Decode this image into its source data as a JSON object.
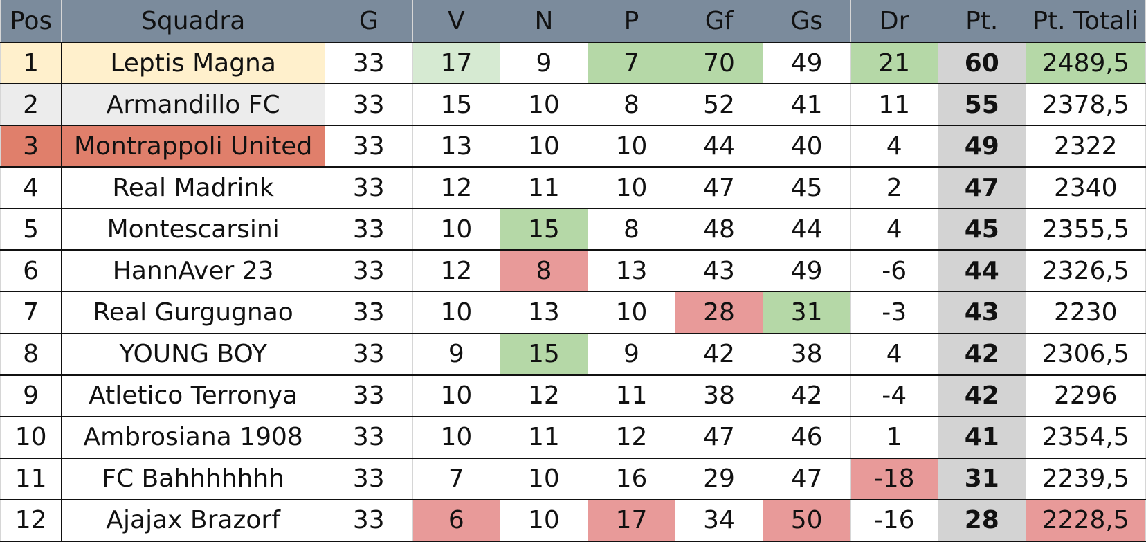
{
  "table": {
    "headers": [
      "Pos",
      "Squadra",
      "G",
      "V",
      "N",
      "P",
      "Gf",
      "Gs",
      "Dr",
      "Pt.",
      "Pt. Totali"
    ],
    "rows": [
      {
        "pos": "1",
        "team": "Leptis Magna",
        "g": "33",
        "v": "17",
        "n": "9",
        "p": "7",
        "gf": "70",
        "gs": "49",
        "dr": "21",
        "pt": "60",
        "tot": "2489,5"
      },
      {
        "pos": "2",
        "team": "Armandillo FC",
        "g": "33",
        "v": "15",
        "n": "10",
        "p": "8",
        "gf": "52",
        "gs": "41",
        "dr": "11",
        "pt": "55",
        "tot": "2378,5"
      },
      {
        "pos": "3",
        "team": "Montrappoli United",
        "g": "33",
        "v": "13",
        "n": "10",
        "p": "10",
        "gf": "44",
        "gs": "40",
        "dr": "4",
        "pt": "49",
        "tot": "2322"
      },
      {
        "pos": "4",
        "team": "Real Madrink",
        "g": "33",
        "v": "12",
        "n": "11",
        "p": "10",
        "gf": "47",
        "gs": "45",
        "dr": "2",
        "pt": "47",
        "tot": "2340"
      },
      {
        "pos": "5",
        "team": "Montescarsini",
        "g": "33",
        "v": "10",
        "n": "15",
        "p": "8",
        "gf": "48",
        "gs": "44",
        "dr": "4",
        "pt": "45",
        "tot": "2355,5"
      },
      {
        "pos": "6",
        "team": "HannAver 23",
        "g": "33",
        "v": "12",
        "n": "8",
        "p": "13",
        "gf": "43",
        "gs": "49",
        "dr": "-6",
        "pt": "44",
        "tot": "2326,5"
      },
      {
        "pos": "7",
        "team": "Real Gurgugnao",
        "g": "33",
        "v": "10",
        "n": "13",
        "p": "10",
        "gf": "28",
        "gs": "31",
        "dr": "-3",
        "pt": "43",
        "tot": "2230"
      },
      {
        "pos": "8",
        "team": "YOUNG BOY",
        "g": "33",
        "v": "9",
        "n": "15",
        "p": "9",
        "gf": "42",
        "gs": "38",
        "dr": "4",
        "pt": "42",
        "tot": "2306,5"
      },
      {
        "pos": "9",
        "team": "Atletico Terronya",
        "g": "33",
        "v": "10",
        "n": "12",
        "p": "11",
        "gf": "38",
        "gs": "42",
        "dr": "-4",
        "pt": "42",
        "tot": "2296"
      },
      {
        "pos": "10",
        "team": "Ambrosiana 1908",
        "g": "33",
        "v": "10",
        "n": "11",
        "p": "12",
        "gf": "47",
        "gs": "46",
        "dr": "1",
        "pt": "41",
        "tot": "2354,5"
      },
      {
        "pos": "11",
        "team": "FC Bahhhhhhh",
        "g": "33",
        "v": "7",
        "n": "10",
        "p": "16",
        "gf": "29",
        "gs": "47",
        "dr": "-18",
        "pt": "31",
        "tot": "2239,5"
      },
      {
        "pos": "12",
        "team": "Ajajax Brazorf",
        "g": "33",
        "v": "6",
        "n": "10",
        "p": "17",
        "gf": "34",
        "gs": "50",
        "dr": "-16",
        "pt": "28",
        "tot": "2228,5"
      }
    ]
  },
  "colors": {
    "header_bg": "#7b8b9c",
    "points_column_bg": "#d3d3d3",
    "best_light_green": "#d6ead2",
    "good_green": "#b5d8a7",
    "bad_red": "#e89a99",
    "first_place": "#fff0cc",
    "second_place": "#ececec",
    "third_place_red": "#e07f6b"
  }
}
